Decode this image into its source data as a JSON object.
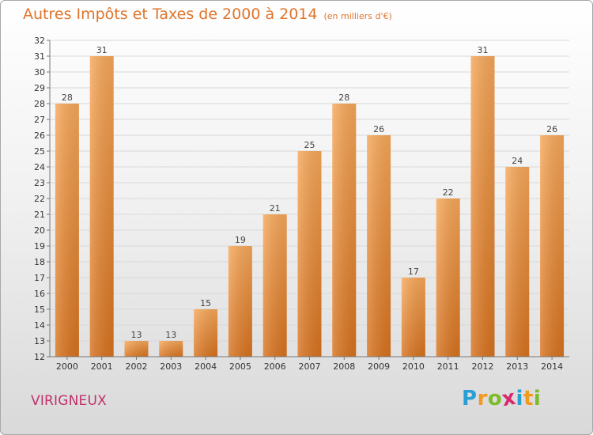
{
  "chart_data": {
    "type": "bar",
    "title": "Autres Impôts et Taxes de 2000 à 2014",
    "subtitle": "(en milliers d'€)",
    "categories": [
      "2000",
      "2001",
      "2002",
      "2003",
      "2004",
      "2005",
      "2006",
      "2007",
      "2008",
      "2009",
      "2010",
      "2011",
      "2012",
      "2013",
      "2014"
    ],
    "values": [
      28,
      31,
      13,
      13,
      15,
      19,
      21,
      25,
      28,
      26,
      17,
      22,
      31,
      24,
      26
    ],
    "ylim": [
      12,
      32
    ],
    "yticks": [
      12,
      13,
      14,
      15,
      16,
      17,
      18,
      19,
      20,
      21,
      22,
      23,
      24,
      25,
      26,
      27,
      28,
      29,
      30,
      31,
      32
    ],
    "grid": true,
    "bar_color": "#f0913a",
    "grid_color": "#d8d8d8"
  },
  "footer": {
    "commune": "VIRIGNEUX",
    "logo": {
      "letters": [
        "P",
        "r",
        "o",
        "x",
        "i",
        "t",
        "i"
      ],
      "colors": [
        "#2a9fd6",
        "#f29a1f",
        "#7dbb29",
        "#d8296e",
        "#2a9fd6",
        "#f29a1f",
        "#7dbb29"
      ]
    }
  }
}
